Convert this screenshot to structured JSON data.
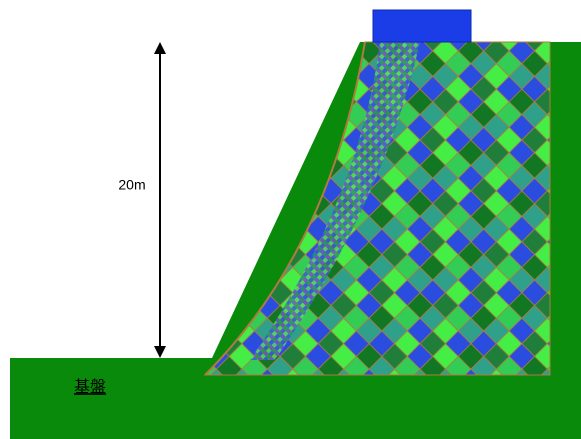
{
  "labels": {
    "height": "20m",
    "base": "基盤"
  }
}
